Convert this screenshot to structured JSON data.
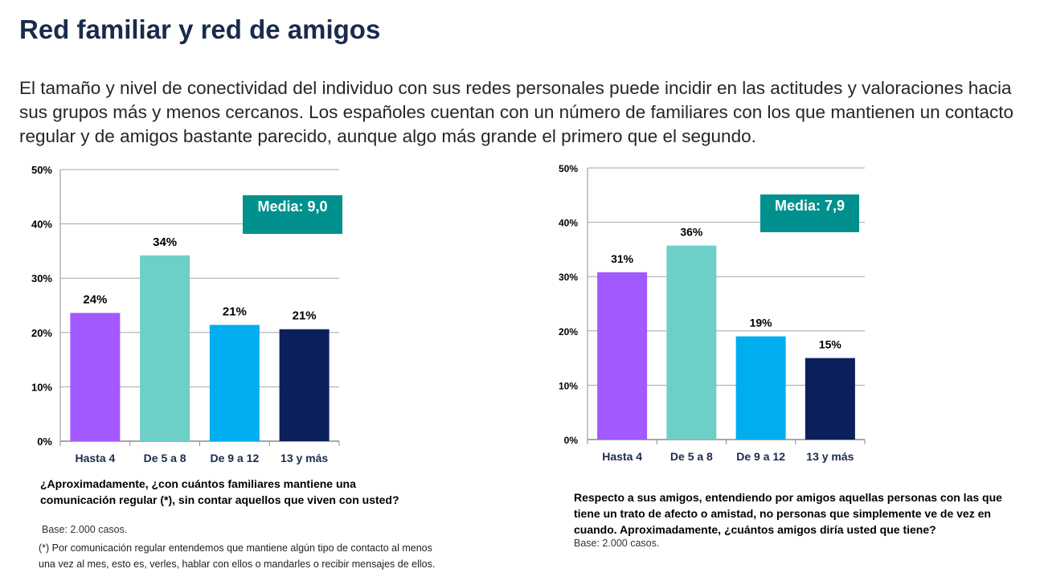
{
  "title": "Red familiar y red de amigos",
  "intro": "El tamaño y nivel de conectividad del individuo con sus redes personales puede incidir en las actitudes y valoraciones hacia sus grupos más y menos cercanos.  Los españoles cuentan con un número de familiares con los que mantienen un contacto regular y de amigos bastante parecido, aunque algo más grande el primero que el segundo.",
  "colors": [
    "#a259ff",
    "#6dd0c7",
    "#00aeef",
    "#0a1f5c"
  ],
  "badge_color": "#00918f",
  "chart_data": [
    {
      "type": "bar",
      "categories": [
        "Hasta 4",
        "De 5 a 8",
        "De 9 a 12",
        "13 y más"
      ],
      "values": [
        23.6,
        34.2,
        21.4,
        20.6
      ],
      "labels": [
        "24%",
        "34%",
        "21%",
        "21%"
      ],
      "yticks": [
        "0%",
        "10%",
        "20%",
        "30%",
        "40%",
        "50%"
      ],
      "ylim": [
        0,
        50
      ],
      "grid": true,
      "badge": "Media: 9,0",
      "question": "¿Aproximadamente, ¿con cuántos familiares mantiene una comunicación regular (*), sin contar aquellos que viven con usted?",
      "base": "Base: 2.000 casos.",
      "note": "(*) Por comunicación regular entendemos que mantiene algún tipo de contacto al menos una vez al mes, esto es, verles, hablar con ellos o mandarles o recibir mensajes de ellos."
    },
    {
      "type": "bar",
      "categories": [
        "Hasta 4",
        "De 5 a 8",
        "De 9 a 12",
        "13 y más"
      ],
      "values": [
        30.8,
        35.7,
        19.0,
        15.0
      ],
      "labels": [
        "31%",
        "36%",
        "19%",
        "15%"
      ],
      "yticks": [
        "0%",
        "10%",
        "20%",
        "30%",
        "40%",
        "50%"
      ],
      "ylim": [
        0,
        50
      ],
      "grid": true,
      "badge": "Media: 7,9",
      "question": "Respecto a sus amigos, entendiendo por amigos aquellas personas con las que tiene un trato de afecto o amistad, no personas que simplemente ve de vez en cuando.  Aproximadamente, ¿cuántos amigos diría usted que tiene?",
      "base": "Base: 2.000 casos."
    }
  ]
}
